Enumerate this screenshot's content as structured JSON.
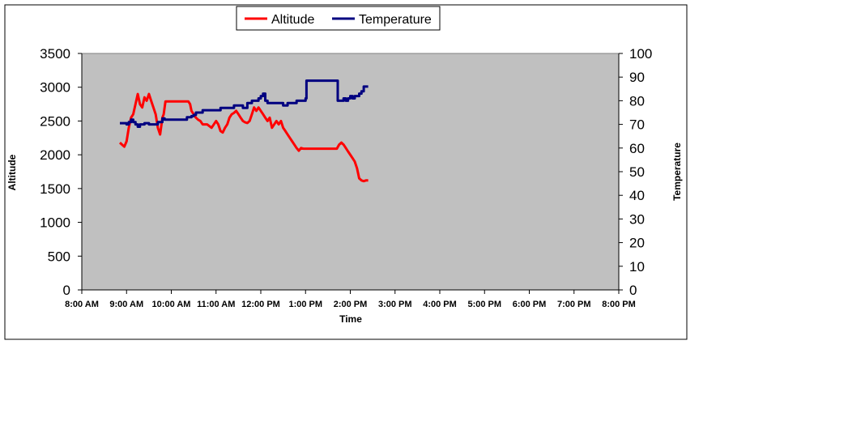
{
  "chart_data": {
    "type": "line",
    "title": "",
    "xlabel": "Time",
    "ylabel": "Altitude",
    "y2label": "Temperature",
    "legend_position": "top",
    "grid": false,
    "plot_background": "#c0c0c0",
    "x_ticks": [
      "8:00 AM",
      "9:00 AM",
      "10:00 AM",
      "11:00 AM",
      "12:00 PM",
      "1:00 PM",
      "2:00 PM",
      "3:00 PM",
      "4:00 PM",
      "5:00 PM",
      "6:00 PM",
      "7:00 PM",
      "8:00 PM"
    ],
    "x_range_hours": [
      8,
      20
    ],
    "ylim": [
      0,
      3500
    ],
    "y_ticks": [
      0,
      500,
      1000,
      1500,
      2000,
      2500,
      3000,
      3500
    ],
    "y2lim": [
      0,
      100
    ],
    "y2_ticks": [
      0,
      10,
      20,
      30,
      40,
      50,
      60,
      70,
      80,
      90,
      100
    ],
    "series": [
      {
        "name": "Altitude",
        "color": "#ff0000",
        "axis": "left",
        "x": [
          8.85,
          8.9,
          8.95,
          9.0,
          9.05,
          9.1,
          9.15,
          9.2,
          9.25,
          9.3,
          9.35,
          9.4,
          9.45,
          9.5,
          9.55,
          9.6,
          9.65,
          9.7,
          9.75,
          9.8,
          9.83,
          9.87,
          9.9,
          9.95,
          10.0,
          10.1,
          10.2,
          10.3,
          10.38,
          10.42,
          10.45,
          10.5,
          10.55,
          10.6,
          10.65,
          10.7,
          10.8,
          10.9,
          11.0,
          11.05,
          11.1,
          11.15,
          11.2,
          11.25,
          11.3,
          11.35,
          11.4,
          11.45,
          11.5,
          11.55,
          11.6,
          11.65,
          11.7,
          11.75,
          11.8,
          11.85,
          11.9,
          11.95,
          12.0,
          12.05,
          12.1,
          12.15,
          12.2,
          12.25,
          12.3,
          12.35,
          12.4,
          12.45,
          12.5,
          12.55,
          12.6,
          12.65,
          12.7,
          12.75,
          12.8,
          12.85,
          12.9,
          12.95,
          13.0,
          13.1,
          13.2,
          13.3,
          13.4,
          13.5,
          13.6,
          13.7,
          13.75,
          13.8,
          13.85,
          13.9,
          13.95,
          14.0,
          14.05,
          14.1,
          14.15,
          14.2,
          14.25,
          14.3,
          14.35,
          14.4
        ],
        "values": [
          2180,
          2150,
          2120,
          2200,
          2400,
          2550,
          2600,
          2750,
          2900,
          2750,
          2700,
          2850,
          2800,
          2900,
          2800,
          2700,
          2600,
          2400,
          2300,
          2550,
          2600,
          2790,
          2790,
          2790,
          2790,
          2790,
          2790,
          2790,
          2790,
          2750,
          2650,
          2600,
          2550,
          2520,
          2500,
          2450,
          2450,
          2400,
          2500,
          2450,
          2350,
          2330,
          2400,
          2450,
          2550,
          2600,
          2620,
          2650,
          2600,
          2550,
          2500,
          2480,
          2470,
          2500,
          2600,
          2700,
          2650,
          2700,
          2650,
          2600,
          2550,
          2500,
          2550,
          2400,
          2450,
          2500,
          2450,
          2500,
          2400,
          2350,
          2300,
          2250,
          2200,
          2150,
          2100,
          2060,
          2100,
          2090,
          2090,
          2090,
          2090,
          2090,
          2090,
          2090,
          2090,
          2090,
          2150,
          2180,
          2150,
          2100,
          2050,
          2000,
          1950,
          1900,
          1800,
          1650,
          1620,
          1610,
          1620,
          1620
        ]
      },
      {
        "name": "Temperature",
        "color": "#000080",
        "axis": "right",
        "x": [
          8.85,
          8.95,
          9.0,
          9.05,
          9.1,
          9.15,
          9.2,
          9.25,
          9.3,
          9.35,
          9.4,
          9.5,
          9.6,
          9.7,
          9.75,
          9.8,
          9.85,
          9.9,
          9.95,
          10.0,
          10.1,
          10.2,
          10.3,
          10.35,
          10.4,
          10.45,
          10.5,
          10.55,
          10.6,
          10.7,
          10.8,
          10.9,
          11.0,
          11.1,
          11.2,
          11.3,
          11.4,
          11.5,
          11.6,
          11.7,
          11.75,
          11.8,
          11.85,
          11.9,
          11.95,
          12.0,
          12.05,
          12.1,
          12.15,
          12.2,
          12.3,
          12.4,
          12.5,
          12.6,
          12.7,
          12.8,
          12.9,
          12.95,
          13.0,
          13.02,
          13.3,
          13.6,
          13.7,
          13.72,
          13.8,
          13.85,
          13.9,
          13.95,
          14.0,
          14.05,
          14.1,
          14.15,
          14.2,
          14.25,
          14.3,
          14.4
        ],
        "values": [
          70.5,
          70.5,
          70,
          71,
          72,
          71,
          70,
          69,
          70,
          70,
          70.5,
          70,
          70,
          71,
          71,
          72.5,
          72,
          72,
          72,
          72,
          72,
          72,
          72,
          73,
          73,
          73.5,
          74,
          75,
          75,
          76,
          76,
          76,
          76,
          77,
          77,
          77,
          78,
          78,
          77,
          79,
          79,
          80,
          80,
          80,
          81,
          82,
          83,
          80,
          79,
          79,
          79,
          79,
          78,
          79,
          79,
          80,
          80,
          80,
          81,
          88.5,
          88.5,
          88.5,
          88.5,
          80,
          80,
          81,
          80,
          81,
          82,
          81,
          82,
          82,
          83,
          84,
          86,
          86
        ]
      }
    ]
  }
}
